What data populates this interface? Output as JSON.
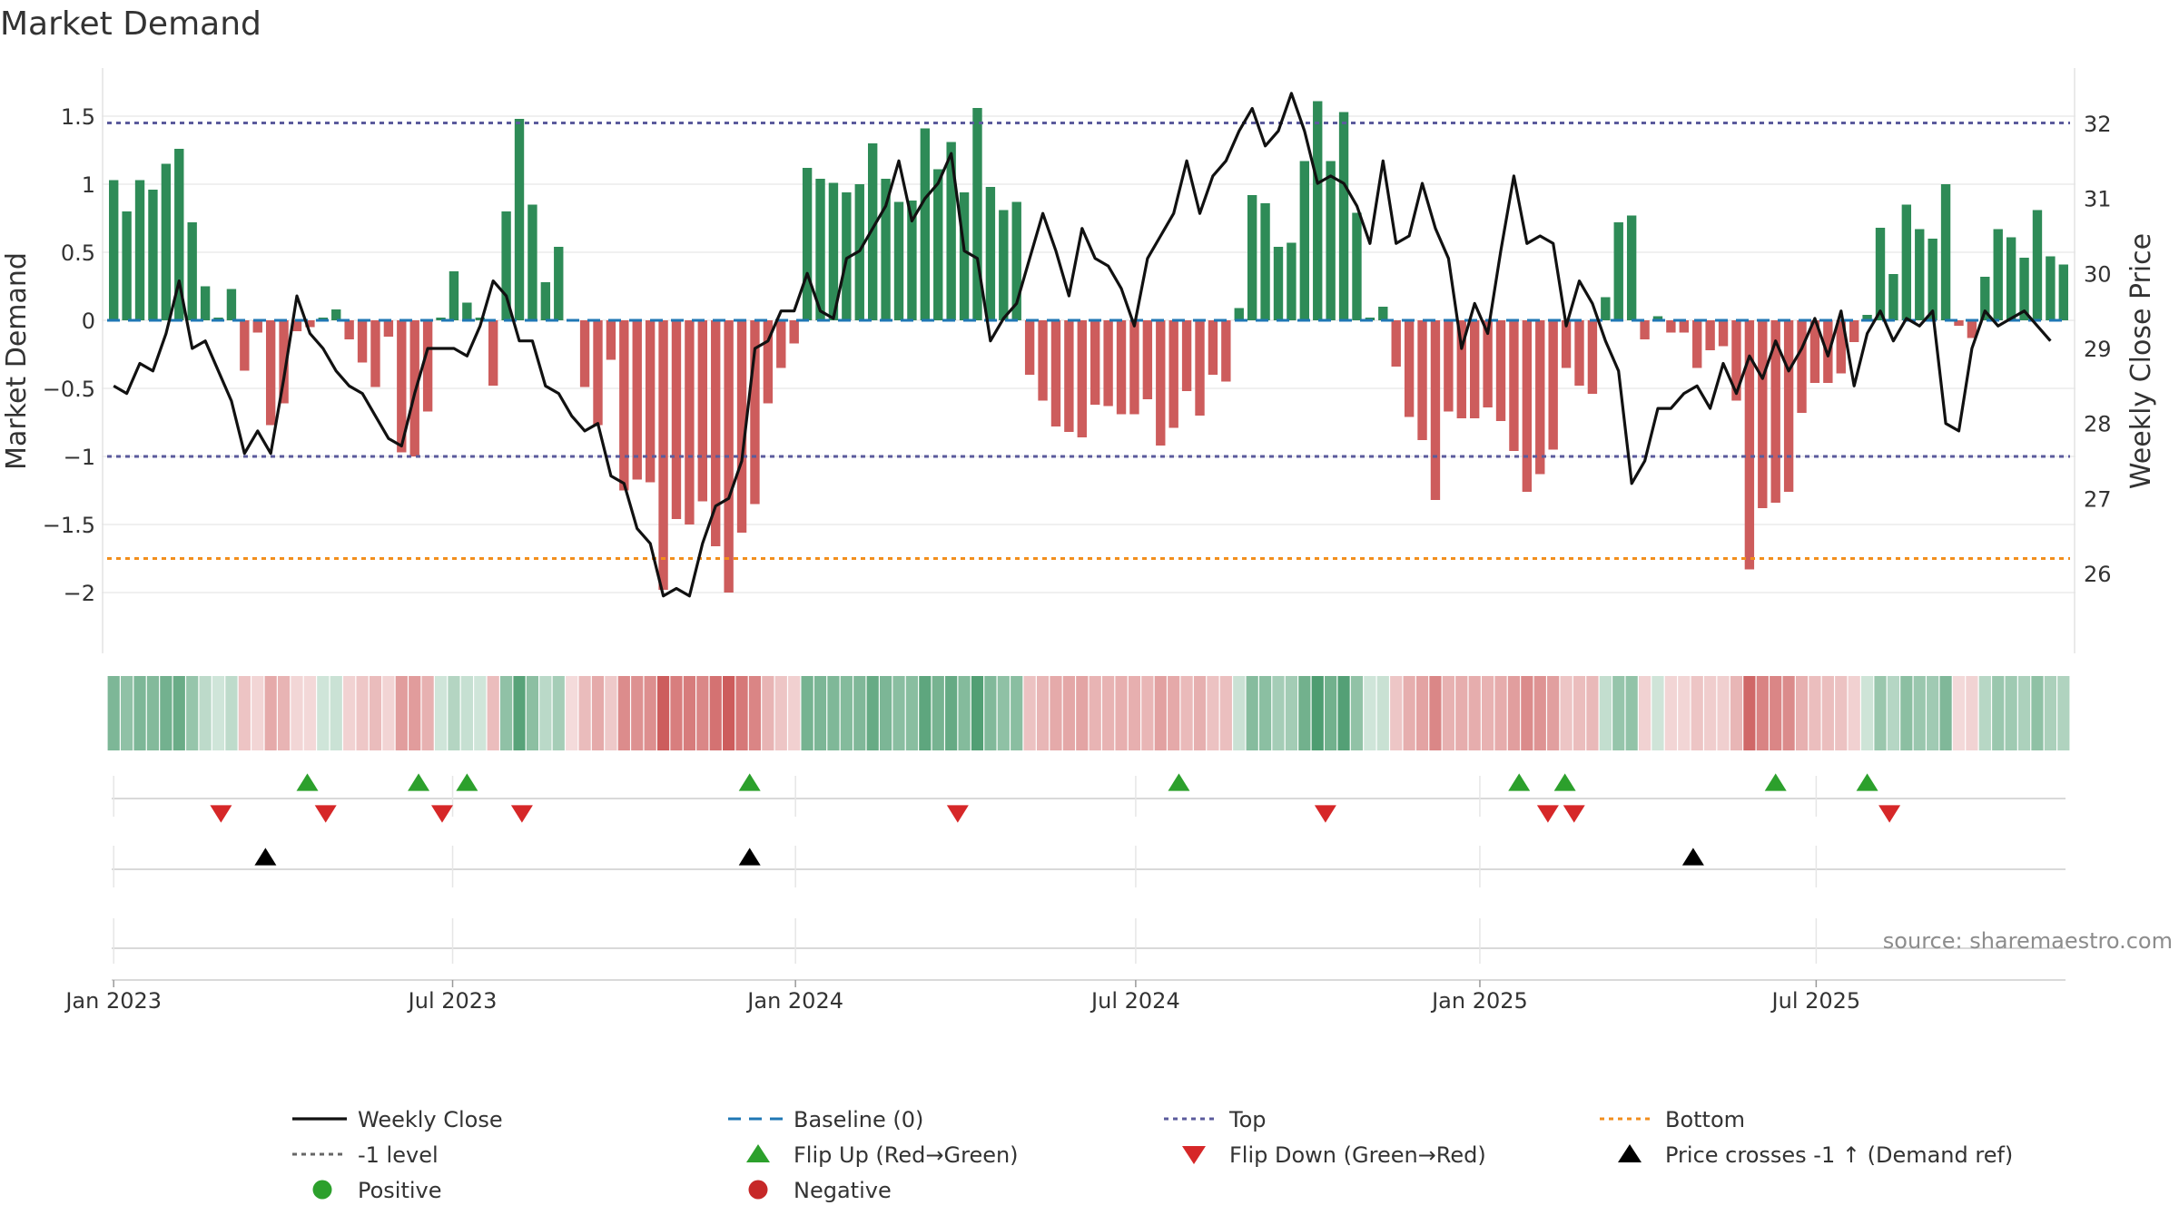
{
  "chart_data": {
    "type": "bar",
    "title": "Market Demand",
    "ylabel_left": "Market Demand",
    "ylabel_right": "Weekly Close Price",
    "ylim_left": [
      -2.4,
      1.8
    ],
    "ylim_right": [
      25.0,
      32.8
    ],
    "yticks_left": [
      {
        "v": 1.5,
        "label": "1.5"
      },
      {
        "v": 1,
        "label": "1"
      },
      {
        "v": 0.5,
        "label": "0.5"
      },
      {
        "v": 0,
        "label": "0"
      },
      {
        "v": -0.5,
        "label": "−0.5"
      },
      {
        "v": -1,
        "label": "−1"
      },
      {
        "v": -1.5,
        "label": "−1.5"
      },
      {
        "v": -2,
        "label": "−2"
      }
    ],
    "yticks_right": [
      {
        "v": 32,
        "label": "32"
      },
      {
        "v": 31,
        "label": "31"
      },
      {
        "v": 30,
        "label": "30"
      },
      {
        "v": 29,
        "label": "29"
      },
      {
        "v": 28,
        "label": "28"
      },
      {
        "v": 27,
        "label": "27"
      },
      {
        "v": 26,
        "label": "26"
      }
    ],
    "x_start_week_index": 0,
    "xticks": [
      {
        "week": 0,
        "label": "Jan 2023"
      },
      {
        "week": 25.9,
        "label": "Jul 2023"
      },
      {
        "week": 52.1,
        "label": "Jan 2024"
      },
      {
        "week": 78.1,
        "label": "Jul 2024"
      },
      {
        "week": 104.4,
        "label": "Jan 2025"
      },
      {
        "week": 130.1,
        "label": "Jul 2025"
      }
    ],
    "reference_lines": {
      "baseline": 0,
      "top": 1.45,
      "minus_one": -1,
      "bottom": -1.75
    },
    "demand": [
      1.03,
      0.8,
      1.03,
      0.96,
      1.15,
      1.26,
      0.72,
      0.25,
      0.02,
      0.23,
      -0.37,
      -0.09,
      -0.77,
      -0.61,
      -0.08,
      -0.05,
      0.02,
      0.08,
      -0.14,
      -0.31,
      -0.49,
      -0.12,
      -0.97,
      -1.0,
      -0.67,
      0.02,
      0.36,
      0.13,
      0.02,
      -0.48,
      0.8,
      1.48,
      0.85,
      0.28,
      0.54,
      -0.01,
      -0.49,
      -0.77,
      -0.29,
      -1.25,
      -1.17,
      -1.19,
      -1.98,
      -1.46,
      -1.5,
      -1.33,
      -1.66,
      -2.0,
      -1.56,
      -1.35,
      -0.61,
      -0.35,
      -0.17,
      1.12,
      1.04,
      1.01,
      0.94,
      1.0,
      1.3,
      1.04,
      0.87,
      0.88,
      1.41,
      1.11,
      1.31,
      0.94,
      1.56,
      0.98,
      0.81,
      0.87,
      -0.4,
      -0.59,
      -0.78,
      -0.82,
      -0.86,
      -0.62,
      -0.63,
      -0.69,
      -0.69,
      -0.58,
      -0.92,
      -0.79,
      -0.52,
      -0.7,
      -0.4,
      -0.45,
      0.09,
      0.92,
      0.86,
      0.54,
      0.57,
      1.17,
      1.61,
      1.17,
      1.53,
      0.79,
      0.02,
      0.1,
      -0.34,
      -0.71,
      -0.88,
      -1.32,
      -0.67,
      -0.72,
      -0.72,
      -0.64,
      -0.74,
      -0.96,
      -1.26,
      -1.13,
      -0.95,
      -0.35,
      -0.48,
      -0.54,
      0.17,
      0.72,
      0.77,
      -0.14,
      0.03,
      -0.09,
      -0.09,
      -0.35,
      -0.22,
      -0.19,
      -0.59,
      -1.83,
      -1.38,
      -1.34,
      -1.26,
      -0.68,
      -0.46,
      -0.46,
      -0.39,
      -0.16,
      0.04,
      0.68,
      0.34,
      0.85,
      0.67,
      0.6,
      1.0,
      -0.04,
      -0.13,
      0.32,
      0.67,
      0.61,
      0.46,
      0.81,
      0.47,
      0.41
    ],
    "close": [
      28.5,
      28.4,
      28.8,
      28.7,
      29.2,
      29.9,
      29.0,
      29.1,
      28.7,
      28.3,
      27.6,
      27.9,
      27.6,
      28.6,
      29.7,
      29.2,
      29.0,
      28.7,
      28.5,
      28.4,
      28.1,
      27.8,
      27.7,
      28.4,
      29.0,
      29.0,
      29.0,
      28.9,
      29.3,
      29.9,
      29.7,
      29.1,
      29.1,
      28.5,
      28.4,
      28.1,
      27.9,
      28.0,
      27.3,
      27.2,
      26.6,
      26.4,
      25.7,
      25.8,
      25.7,
      26.4,
      26.9,
      27.0,
      27.5,
      29.0,
      29.1,
      29.5,
      29.5,
      30.0,
      29.5,
      29.4,
      30.2,
      30.3,
      30.6,
      30.9,
      31.5,
      30.7,
      31.0,
      31.2,
      31.6,
      30.3,
      30.2,
      29.1,
      29.4,
      29.6,
      30.2,
      30.8,
      30.3,
      29.7,
      30.6,
      30.2,
      30.1,
      29.8,
      29.3,
      30.2,
      30.5,
      30.8,
      31.5,
      30.8,
      31.3,
      31.5,
      31.9,
      32.2,
      31.7,
      31.9,
      32.4,
      31.9,
      31.2,
      31.3,
      31.2,
      30.9,
      30.4,
      31.5,
      30.4,
      30.5,
      31.2,
      30.6,
      30.2,
      29.0,
      29.6,
      29.2,
      30.3,
      31.3,
      30.4,
      30.5,
      30.4,
      29.3,
      29.9,
      29.6,
      29.1,
      28.7,
      27.2,
      27.5,
      28.2,
      28.2,
      28.4,
      28.5,
      28.2,
      28.8,
      28.4,
      28.9,
      28.6,
      29.1,
      28.7,
      29.0,
      29.4,
      28.9,
      29.5,
      28.5,
      29.2,
      29.5,
      29.1,
      29.4,
      29.3,
      29.5,
      28.0,
      27.9,
      29.0,
      29.5,
      29.3,
      29.4,
      29.5,
      29.3,
      29.1
    ],
    "flip_up_weeks": [
      14.8,
      23.3,
      27,
      48.6,
      81.4,
      107.4,
      110.9,
      127,
      134
    ],
    "flip_down_weeks": [
      8.2,
      16.2,
      25.1,
      31.2,
      64.5,
      92.6,
      109.6,
      111.6,
      135.7
    ],
    "price_cross_weeks": [
      11.6,
      48.6,
      120.7
    ],
    "source": "source: sharemaestro.com",
    "colors": {
      "green": "#2e8b57",
      "red": "#cd5c5c",
      "close": "#111111",
      "top": "#5b5b9c",
      "bottom": "#f28e1c",
      "baseline": "#1f77b4",
      "flip_up": "#2ca02c",
      "flip_down": "#d62728",
      "positive": "#2ca02c",
      "negative": "#c62828"
    },
    "legend": [
      {
        "label": "Weekly Close",
        "marker": "line-solid",
        "color": "#111111"
      },
      {
        "label": "Baseline (0)",
        "marker": "line-dash",
        "color": "#1f77b4"
      },
      {
        "label": "Top",
        "marker": "line-dot",
        "color": "#5b5b9c"
      },
      {
        "label": "Bottom",
        "marker": "line-dot",
        "color": "#f28e1c"
      },
      {
        "label": "-1 level",
        "marker": "line-dot",
        "color": "#666666"
      },
      {
        "label": "Flip Up (Red→Green)",
        "marker": "triangle-up",
        "color": "#2ca02c"
      },
      {
        "label": "Flip Down (Green→Red)",
        "marker": "triangle-down",
        "color": "#d62728"
      },
      {
        "label": "Price crosses -1 ↑ (Demand ref)",
        "marker": "triangle-up",
        "color": "#000000"
      },
      {
        "label": "Positive",
        "marker": "circle",
        "color": "#2ca02c"
      },
      {
        "label": "Negative",
        "marker": "circle",
        "color": "#c62828"
      }
    ]
  }
}
